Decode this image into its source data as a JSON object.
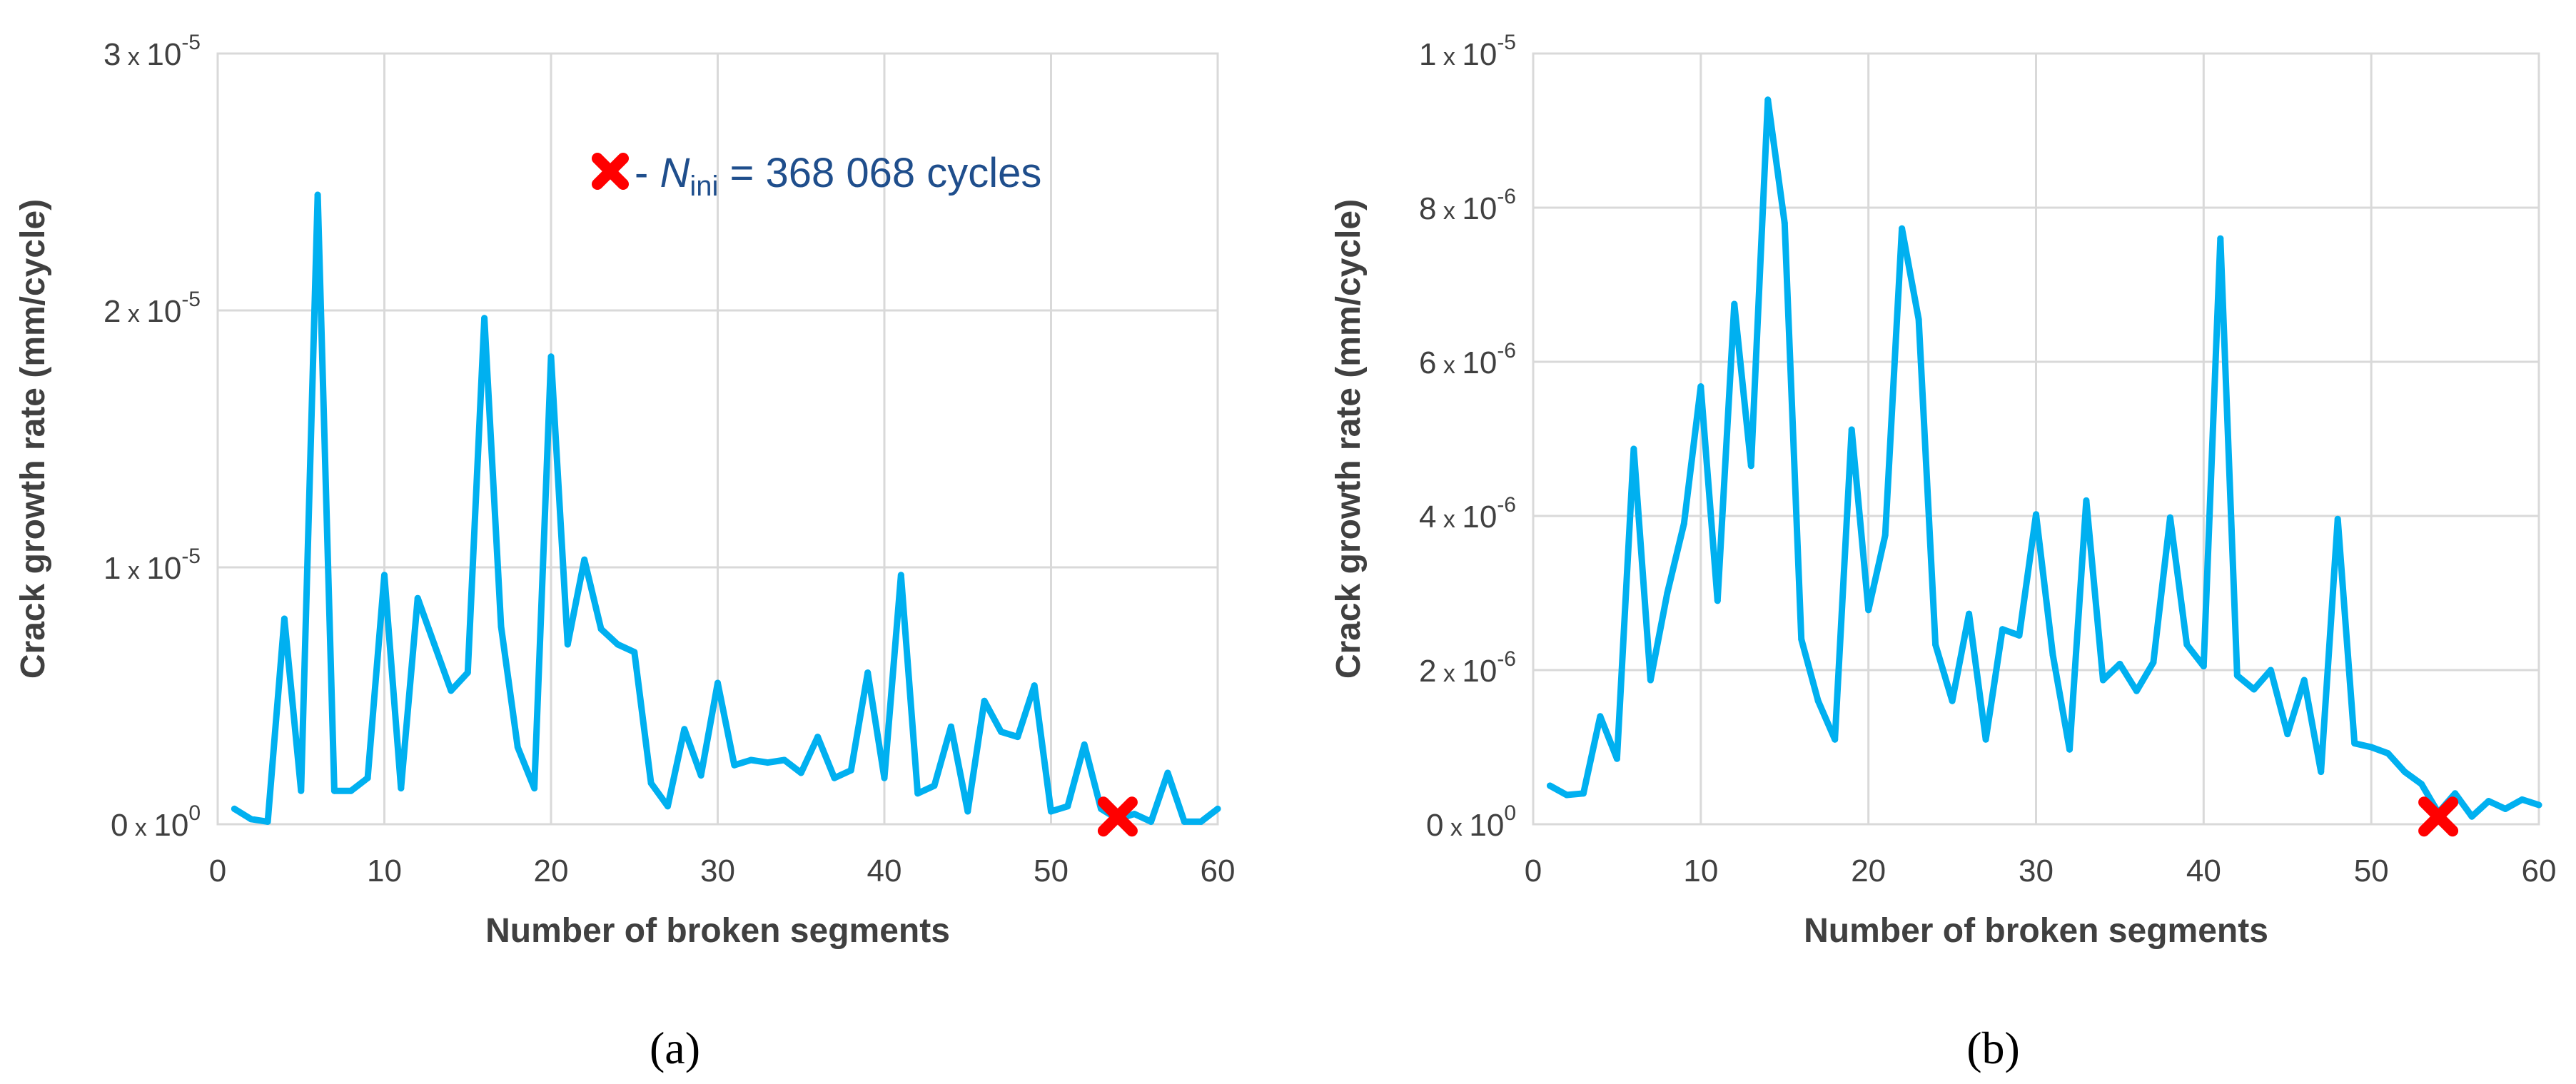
{
  "chart_data": [
    {
      "panel_label": "(a)",
      "type": "line",
      "xlabel": "Number of broken segments",
      "ylabel": "Crack growth rate (mm/cycle)",
      "xlim": [
        0,
        60
      ],
      "ylim": [
        0,
        3e-05
      ],
      "x_ticks": [
        0,
        10,
        20,
        30,
        40,
        50,
        60
      ],
      "y_ticks": [
        {
          "value": 0,
          "mantissa": "0",
          "exponent": "0"
        },
        {
          "value": 1e-05,
          "mantissa": "1",
          "exponent": "-5"
        },
        {
          "value": 2e-05,
          "mantissa": "2",
          "exponent": "-5"
        },
        {
          "value": 3e-05,
          "mantissa": "3",
          "exponent": "-5"
        }
      ],
      "grid": true,
      "color": "#00b0f0",
      "marker_color": "#ff0000",
      "legend": {
        "symbol": "✖",
        "prefix": " - ",
        "var": "N",
        "sub": "ini",
        "rest": " = 368 068 cycles"
      },
      "marker": {
        "x": 54,
        "y": 3e-07
      },
      "x": [
        1,
        2,
        3,
        4,
        5,
        6,
        7,
        8,
        9,
        10,
        11,
        12,
        13,
        14,
        15,
        16,
        17,
        18,
        19,
        20,
        21,
        22,
        23,
        24,
        25,
        26,
        27,
        28,
        29,
        30,
        31,
        32,
        33,
        34,
        35,
        36,
        37,
        38,
        39,
        40,
        41,
        42,
        43,
        44,
        45,
        46,
        47,
        48,
        49,
        50,
        51,
        52,
        53,
        54,
        55,
        56,
        57,
        58,
        59,
        60
      ],
      "y": [
        6e-07,
        2e-07,
        1e-07,
        8e-06,
        1.3e-06,
        2.45e-05,
        1.3e-06,
        1.3e-06,
        1.8e-06,
        9.7e-06,
        1.4e-06,
        8.8e-06,
        7e-06,
        5.2e-06,
        5.9e-06,
        1.97e-05,
        7.7e-06,
        3e-06,
        1.4e-06,
        1.82e-05,
        7e-06,
        1.03e-05,
        7.6e-06,
        7e-06,
        6.7e-06,
        1.6e-06,
        7e-07,
        3.7e-06,
        1.9e-06,
        5.5e-06,
        2.3e-06,
        2.5e-06,
        2.4e-06,
        2.5e-06,
        2e-06,
        3.4e-06,
        1.8e-06,
        2.1e-06,
        5.9e-06,
        1.8e-06,
        9.7e-06,
        1.2e-06,
        1.5e-06,
        3.8e-06,
        5e-07,
        4.8e-06,
        3.6e-06,
        3.4e-06,
        5.4e-06,
        5e-07,
        7e-07,
        3.1e-06,
        6e-07,
        2e-07,
        4e-07,
        1e-07,
        2e-06,
        1e-07,
        1e-07,
        6e-07
      ]
    },
    {
      "panel_label": "(b)",
      "type": "line",
      "xlabel": "Number of broken segments",
      "ylabel": "Crack growth rate (mm/cycle)",
      "xlim": [
        0,
        60
      ],
      "ylim": [
        0,
        1e-05
      ],
      "x_ticks": [
        0,
        10,
        20,
        30,
        40,
        50,
        60
      ],
      "y_ticks": [
        {
          "value": 0,
          "mantissa": "0",
          "exponent": "0"
        },
        {
          "value": 2e-06,
          "mantissa": "2",
          "exponent": "-6"
        },
        {
          "value": 4e-06,
          "mantissa": "4",
          "exponent": "-6"
        },
        {
          "value": 6e-06,
          "mantissa": "6",
          "exponent": "-6"
        },
        {
          "value": 8e-06,
          "mantissa": "8",
          "exponent": "-6"
        },
        {
          "value": 1e-05,
          "mantissa": "1",
          "exponent": "-5"
        }
      ],
      "grid": true,
      "color": "#00b0f0",
      "marker_color": "#ff0000",
      "marker": {
        "x": 54,
        "y": 1e-07
      },
      "x": [
        1,
        2,
        3,
        4,
        5,
        6,
        7,
        8,
        9,
        10,
        11,
        12,
        13,
        14,
        15,
        16,
        17,
        18,
        19,
        20,
        21,
        22,
        23,
        24,
        25,
        26,
        27,
        28,
        29,
        30,
        31,
        32,
        33,
        34,
        35,
        36,
        37,
        38,
        39,
        40,
        41,
        42,
        43,
        44,
        45,
        46,
        47,
        48,
        49,
        50,
        51,
        52,
        53,
        54,
        55,
        56,
        57,
        58,
        59,
        60
      ],
      "y": [
        5e-07,
        3.8e-07,
        4e-07,
        1.4e-06,
        8.5e-07,
        4.87e-06,
        1.87e-06,
        3e-06,
        3.9e-06,
        5.68e-06,
        2.9e-06,
        6.75e-06,
        4.65e-06,
        9.4e-06,
        7.8e-06,
        2.4e-06,
        1.6e-06,
        1.1e-06,
        5.12e-06,
        2.78e-06,
        3.75e-06,
        7.73e-06,
        6.55e-06,
        2.33e-06,
        1.6e-06,
        2.73e-06,
        1.1e-06,
        2.53e-06,
        2.45e-06,
        4.02e-06,
        2.2e-06,
        9.7e-07,
        4.2e-06,
        1.87e-06,
        2.08e-06,
        1.73e-06,
        2.1e-06,
        3.98e-06,
        2.33e-06,
        2.05e-06,
        7.6e-06,
        1.93e-06,
        1.75e-06,
        2e-06,
        1.17e-06,
        1.87e-06,
        6.8e-07,
        3.96e-06,
        1.05e-06,
        1e-06,
        9.2e-07,
        6.8e-07,
        5.2e-07,
        1.5e-07,
        4e-07,
        1e-07,
        3e-07,
        2e-07,
        3.2e-07,
        2.5e-07
      ]
    }
  ]
}
